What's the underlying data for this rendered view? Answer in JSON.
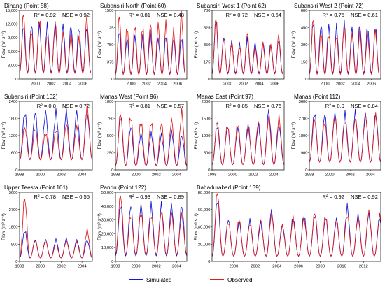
{
  "legend": [
    {
      "name": "Simulated",
      "color": "#1515d4"
    },
    {
      "name": "Observed",
      "color": "#e01b1b"
    }
  ],
  "chart_data": [
    {
      "type": "line",
      "title": "Dihang (Point 58)",
      "r2": "R² = 0.92",
      "nse": "NSE = 0.92",
      "ylabel": "Flow (m³ s⁻¹)",
      "xlim": [
        1998,
        2007.2
      ],
      "xticks": [
        "2000",
        "2002",
        "2004",
        "2006"
      ],
      "ylim": [
        0,
        15000
      ],
      "yticks": [
        "0",
        "3,000",
        "6,000",
        "9,000",
        "12,000",
        "15,000"
      ],
      "series": [
        {
          "name": "Simulated",
          "peaks": [
            11700,
            11700,
            11700,
            11600,
            11700,
            11600,
            11600,
            11200,
            11400
          ],
          "base": 1500
        },
        {
          "name": "Observed",
          "peaks": [
            14300,
            10500,
            13200,
            9600,
            12200,
            9800,
            9600,
            8800,
            13400
          ],
          "base": 1200
        }
      ]
    },
    {
      "type": "line",
      "title": "Subansiri North (Point 60)",
      "r2": "R² = 0.81",
      "nse": "NSE = 0.48",
      "ylabel": "Flow (m³ s⁻¹)",
      "xlim": [
        1998,
        2007.2
      ],
      "xticks": [
        "2000",
        "2002",
        "2004",
        "2006"
      ],
      "ylim": [
        0,
        1500
      ],
      "yticks": [
        "0",
        "375",
        "750",
        "1125",
        "1500"
      ],
      "series": [
        {
          "name": "Simulated",
          "peaks": [
            1050,
            880,
            920,
            900,
            1000,
            870,
            920,
            880,
            900
          ],
          "base": 120
        },
        {
          "name": "Observed",
          "peaks": [
            1380,
            1120,
            1180,
            1120,
            1200,
            1180,
            1200,
            1050,
            1420
          ],
          "base": 90
        }
      ]
    },
    {
      "type": "line",
      "title": "Subansiri West 1 (Point 62)",
      "r2": "R² = 0.72",
      "nse": "NSE = 0.64",
      "ylabel": "Flow (m³ s⁻¹)",
      "xlim": [
        1998,
        2007.2
      ],
      "xticks": [
        "2000",
        "2002",
        "2004",
        "2006"
      ],
      "ylim": [
        0,
        700
      ],
      "yticks": [
        "0",
        "175",
        "350",
        "525",
        "700"
      ],
      "series": [
        {
          "name": "Simulated",
          "peaks": [
            600,
            420,
            380,
            350,
            400,
            360,
            380,
            350,
            400
          ],
          "base": 60
        },
        {
          "name": "Observed",
          "peaks": [
            620,
            430,
            360,
            330,
            470,
            320,
            350,
            330,
            440
          ],
          "base": 50
        }
      ]
    },
    {
      "type": "line",
      "title": "Subansiri West 2 (Point 72)",
      "r2": "R² = 0.75",
      "nse": "NSE = 0.61",
      "ylabel": "Flow (m³ s⁻¹)",
      "xlim": [
        1998,
        2007.2
      ],
      "xticks": [
        "2000",
        "2002",
        "2004",
        "2006"
      ],
      "ylim": [
        0,
        600
      ],
      "yticks": [
        "0",
        "150",
        "300",
        "450",
        "600"
      ],
      "series": [
        {
          "name": "Simulated",
          "peaks": [
            500,
            470,
            460,
            450,
            480,
            440,
            470,
            450,
            450
          ],
          "base": 50
        },
        {
          "name": "Observed",
          "peaks": [
            520,
            400,
            390,
            380,
            470,
            380,
            420,
            380,
            420
          ],
          "base": 40
        }
      ]
    },
    {
      "type": "line",
      "title": "Subansiri (Point 102)",
      "r2": "R² = 0.8",
      "nse": "NSE = 0.72",
      "ylabel": "Flow (m³ s⁻¹)",
      "xlim": [
        1998,
        2005
      ],
      "xticks": [
        "1998",
        "2000",
        "2002",
        "2004"
      ],
      "ylim": [
        0,
        2400
      ],
      "yticks": [
        "0",
        "600",
        "1200",
        "1800",
        "2400"
      ],
      "series": [
        {
          "name": "Simulated",
          "peaks": [
            2000,
            2000,
            2000,
            2000,
            2000,
            2000,
            2000
          ],
          "base": 350
        },
        {
          "name": "Observed",
          "peaks": [
            1500,
            1450,
            1300,
            1400,
            1600,
            1500,
            2200
          ],
          "base": 350
        }
      ]
    },
    {
      "type": "line",
      "title": "Manas West (Point 96)",
      "r2": "R² = 0.81",
      "nse": "NSE = 0.57",
      "ylabel": "Flow (m³ s⁻¹)",
      "xlim": [
        1998,
        2005
      ],
      "xticks": [
        "1998",
        "2000",
        "2002",
        "2004"
      ],
      "ylim": [
        0,
        1000
      ],
      "yticks": [
        "0",
        "250",
        "500",
        "750",
        "1000"
      ],
      "series": [
        {
          "name": "Simulated",
          "peaks": [
            780,
            620,
            520,
            520,
            500,
            560,
            500
          ],
          "base": 60
        },
        {
          "name": "Observed",
          "peaks": [
            820,
            780,
            700,
            700,
            680,
            720,
            830
          ],
          "base": 60
        }
      ]
    },
    {
      "type": "line",
      "title": "Manas East (Point 97)",
      "r2": "R² = 0.85",
      "nse": "NSE = 0.76",
      "ylabel": "Flow (m³ s⁻¹)",
      "xlim": [
        1998,
        2005
      ],
      "xticks": [
        "1998",
        "2000",
        "2002",
        "2004"
      ],
      "ylim": [
        0,
        2000
      ],
      "yticks": [
        "0",
        "500",
        "1000",
        "1500",
        "2000"
      ],
      "series": [
        {
          "name": "Simulated",
          "peaks": [
            1300,
            1250,
            1200,
            1250,
            1300,
            1700,
            1300
          ],
          "base": 150
        },
        {
          "name": "Observed",
          "peaks": [
            1400,
            1300,
            1350,
            1300,
            1400,
            1500,
            1500
          ],
          "base": 150
        }
      ]
    },
    {
      "type": "line",
      "title": "Manas (Point 112)",
      "r2": "R² = 0.9",
      "nse": "NSE = 0.84",
      "ylabel": "Flow (m³ s⁻¹)",
      "xlim": [
        1998,
        2005
      ],
      "xticks": [
        "1998",
        "2000",
        "2002",
        "2004"
      ],
      "ylim": [
        0,
        3600
      ],
      "yticks": [
        "0",
        "900",
        "1800",
        "2700",
        "3600"
      ],
      "series": [
        {
          "name": "Simulated",
          "peaks": [
            3000,
            2900,
            2900,
            2900,
            2950,
            2900,
            2950
          ],
          "base": 400
        },
        {
          "name": "Observed",
          "peaks": [
            2700,
            2500,
            2800,
            2600,
            2700,
            2800,
            2800
          ],
          "base": 400
        }
      ]
    },
    {
      "type": "line",
      "title": "Upper Teesta (Point 101)",
      "r2": "R² = 0.78",
      "nse": "NSE = 0.55",
      "ylabel": "Flow (m³ s⁻¹)",
      "xlim": [
        1998,
        2005
      ],
      "xticks": [
        "1998",
        "2000",
        "2002",
        "2004"
      ],
      "ylim": [
        0,
        3600
      ],
      "yticks": [
        "0",
        "900",
        "1800",
        "2700",
        "3600"
      ],
      "series": [
        {
          "name": "Simulated",
          "peaks": [
            1600,
            1100,
            1100,
            1100,
            1150,
            1100,
            1100
          ],
          "base": 180
        },
        {
          "name": "Observed",
          "peaks": [
            3300,
            1100,
            1050,
            900,
            1050,
            1000,
            1600
          ],
          "base": 180
        }
      ]
    },
    {
      "type": "line",
      "title": "Pandu (Point 122)",
      "r2": "R² = 0.93",
      "nse": "NSE = 0.89",
      "ylabel": "Flow (m³ s⁻¹)",
      "xlim": [
        1998,
        2005
      ],
      "xticks": [
        "1998",
        "2000",
        "2002",
        "2004"
      ],
      "ylim": [
        0,
        50000
      ],
      "yticks": [
        "0",
        "10,000",
        "20,000",
        "30,000",
        "40,000",
        "50,000"
      ],
      "series": [
        {
          "name": "Simulated",
          "peaks": [
            41000,
            40000,
            40000,
            40000,
            40000,
            40000,
            40000
          ],
          "base": 4000
        },
        {
          "name": "Observed",
          "peaks": [
            48000,
            33000,
            35000,
            33000,
            36000,
            34000,
            33000
          ],
          "base": 5000
        }
      ]
    },
    {
      "type": "line",
      "title": "Bahadurabad (Point 139)",
      "r2": "R² = 0.92",
      "nse": "NSE = 0.92",
      "ylabel": "Flow (m³ s⁻¹)",
      "xlim": [
        1998,
        2013.6
      ],
      "xticks": [
        "2000",
        "2002",
        "2004",
        "2006",
        "2008",
        "2010",
        "2012"
      ],
      "ylim": [
        0,
        80000
      ],
      "yticks": [
        "0",
        "20,000",
        "40,000",
        "60,000",
        "80,000"
      ],
      "series": [
        {
          "name": "Simulated",
          "peaks": [
            72000,
            48000,
            46000,
            46000,
            44000,
            58000,
            42000,
            50000,
            52000,
            54000,
            50000,
            48000,
            62000,
            52000,
            54000,
            50000
          ],
          "base": 6000
        },
        {
          "name": "Observed",
          "peaks": [
            80000,
            46000,
            47000,
            44000,
            48000,
            54000,
            40000,
            49000,
            50000,
            56000,
            52000,
            47000,
            54000,
            50000,
            57000,
            52000
          ],
          "base": 6000
        }
      ]
    }
  ]
}
